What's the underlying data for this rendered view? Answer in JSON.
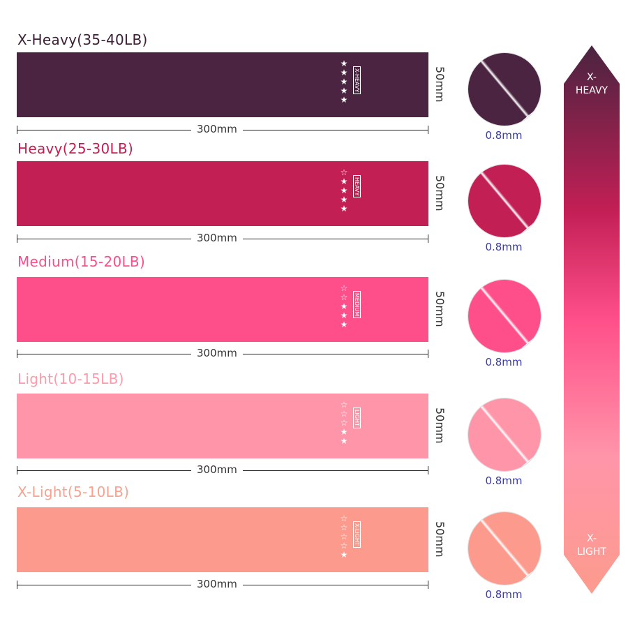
{
  "bands": [
    {
      "title": "X-Heavy(35-40LB)",
      "tag": "X-HEAVY",
      "stars_filled": 5,
      "stars_total": 5,
      "color": "#4a2440",
      "title_color": "#3b2036",
      "length": "300mm",
      "width": "50mm",
      "thickness": "0.8mm"
    },
    {
      "title": "Heavy(25-30LB)",
      "tag": "HEAVY",
      "stars_filled": 4,
      "stars_total": 5,
      "color": "#c21f55",
      "title_color": "#c0204f",
      "length": "300mm",
      "width": "50mm",
      "thickness": "0.8mm"
    },
    {
      "title": "Medium(15-20LB)",
      "tag": "MEDIUM",
      "stars_filled": 3,
      "stars_total": 5,
      "color": "#ff4f8a",
      "title_color": "#ff4d88",
      "length": "300mm",
      "width": "50mm",
      "thickness": "0.8mm"
    },
    {
      "title": "Light(10-15LB)",
      "tag": "LIGHT",
      "stars_filled": 2,
      "stars_total": 5,
      "color": "#ff95a9",
      "title_color": "#ff9aab",
      "length": "300mm",
      "width": "50mm",
      "thickness": "0.8mm"
    },
    {
      "title": "X-Light(5-10LB)",
      "tag": "X-LIGHT",
      "stars_filled": 1,
      "stars_total": 5,
      "color": "#fc9b8d",
      "title_color": "#f9a290",
      "length": "300mm",
      "width": "50mm",
      "thickness": "0.8mm"
    }
  ],
  "scale": {
    "top_label": "X-\nHEAVY",
    "bottom_label": "X-\nLIGHT",
    "top_color": "#4a2440",
    "mid_color": "#ff4f8a",
    "bottom_color": "#fc9b8d"
  }
}
